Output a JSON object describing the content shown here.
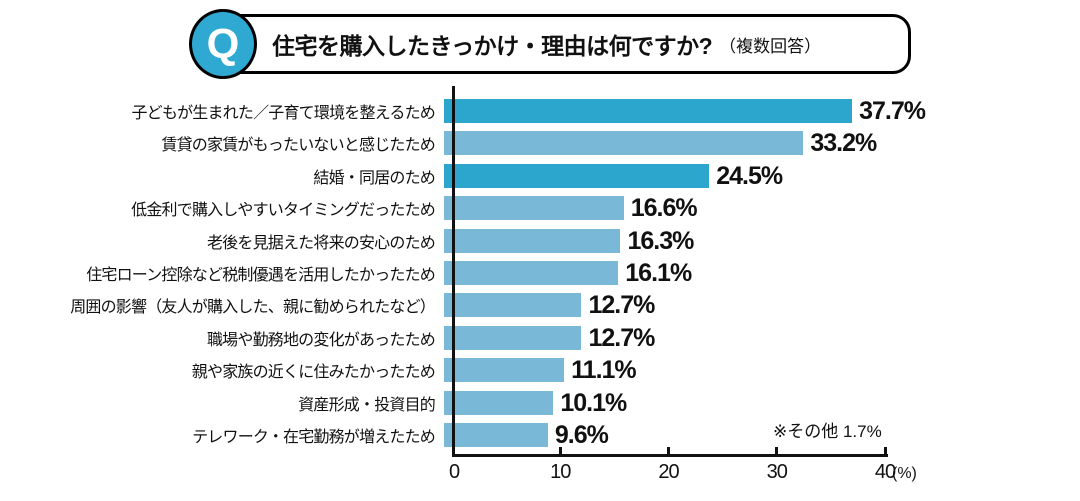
{
  "header": {
    "badge": "Q",
    "title": "住宅を購入したきっかけ・理由は何ですか?",
    "subtitle": "（複数回答）"
  },
  "chart_data": {
    "type": "bar",
    "orientation": "horizontal",
    "title": "住宅を購入したきっかけ・理由は何ですか?（複数回答）",
    "categories": [
      "子どもが生まれた／子育て環境を整えるため",
      "賃貸の家賃がもったいないと感じたため",
      "結婚・同居のため",
      "低金利で購入しやすいタイミングだったため",
      "老後を見据えた将来の安心のため",
      "住宅ローン控除など税制優遇を活用したかったため",
      "周囲の影響（友人が購入した、親に勧められたなど）",
      "職場や勤務地の変化があったため",
      "親や家族の近くに住みたかったため",
      "資産形成・投資目的",
      "テレワーク・在宅勤務が増えたため"
    ],
    "values": [
      37.7,
      33.2,
      24.5,
      16.6,
      16.3,
      16.1,
      12.7,
      12.7,
      11.1,
      10.1,
      9.6
    ],
    "value_labels": [
      "37.7%",
      "33.2%",
      "24.5%",
      "16.6%",
      "16.3%",
      "16.1%",
      "12.7%",
      "12.7%",
      "11.1%",
      "10.1%",
      "9.6%"
    ],
    "emphasized": [
      true,
      false,
      true,
      false,
      false,
      false,
      false,
      false,
      false,
      false,
      false
    ],
    "xlim": [
      0,
      40
    ],
    "x_ticks": [
      "0",
      "10",
      "20",
      "30",
      "40"
    ],
    "x_unit": "(%)",
    "note": "※その他 1.7%",
    "grid": false,
    "legend": "none",
    "colors": {
      "bar_emphasis": "#2ca6cc",
      "bar_normal": "#79b8d6",
      "badge": "#2fa9d1",
      "axis": "#111111"
    }
  }
}
